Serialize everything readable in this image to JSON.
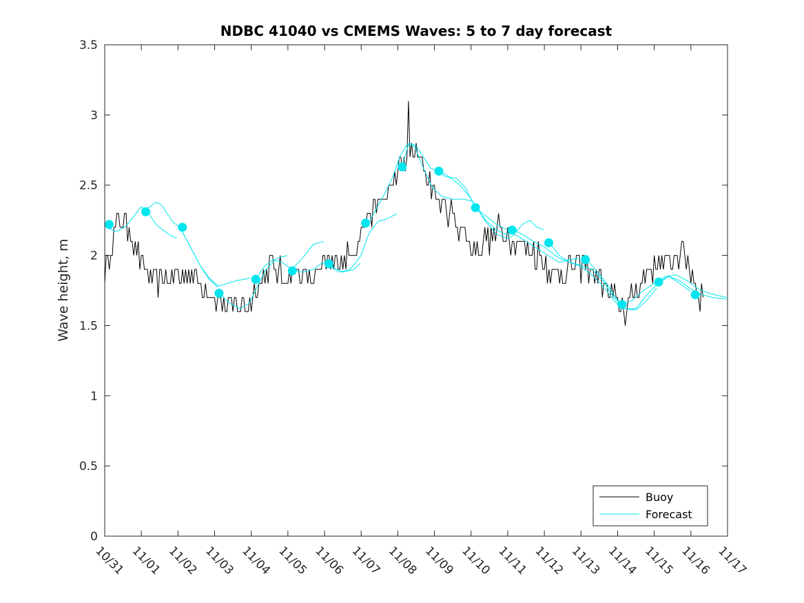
{
  "chart_data": {
    "type": "line",
    "title": "NDBC 41040 vs CMEMS Waves: 5 to 7 day forecast",
    "xlabel": "",
    "ylabel": "Wave height, m",
    "xlim": [
      0,
      17
    ],
    "ylim": [
      0,
      3.5
    ],
    "x_tick_labels": [
      "10/31",
      "11/01",
      "11/02",
      "11/03",
      "11/04",
      "11/05",
      "11/06",
      "11/07",
      "11/08",
      "11/09",
      "11/10",
      "11/11",
      "11/12",
      "11/13",
      "11/14",
      "11/15",
      "11/16",
      "11/17"
    ],
    "y_tick_labels": [
      "0",
      "0.5",
      "1",
      "1.5",
      "2",
      "2.5",
      "3",
      "3.5"
    ],
    "y_ticks": [
      0,
      0.5,
      1,
      1.5,
      2,
      2.5,
      3,
      3.5
    ],
    "legend": {
      "position": "bottom-right",
      "entries": [
        "Buoy",
        "Forecast"
      ]
    },
    "colors": {
      "buoy": "#000000",
      "forecast": "#00e5ee",
      "axes": "#262626"
    },
    "series": [
      {
        "name": "Buoy",
        "style": "noisy-hourly",
        "x": [
          0,
          0.15,
          0.4,
          0.7,
          0.9,
          1.1,
          1.5,
          2.0,
          2.4,
          2.8,
          3.1,
          3.4,
          3.8,
          4.1,
          4.5,
          4.9,
          5.2,
          5.6,
          6.0,
          6.4,
          6.8,
          7.1,
          7.5,
          7.8,
          8.1,
          8.3,
          8.6,
          8.9,
          9.2,
          9.6,
          10.0,
          10.4,
          10.8,
          11.2,
          11.6,
          12.0,
          12.4,
          12.8,
          13.2,
          13.6,
          13.9,
          14.2,
          14.5,
          14.8,
          15.1,
          15.4,
          15.8,
          16.1,
          16.3
        ],
        "values": [
          1.85,
          2.05,
          2.25,
          2.18,
          2.0,
          1.9,
          1.82,
          1.85,
          1.85,
          1.75,
          1.68,
          1.64,
          1.65,
          1.72,
          1.92,
          1.85,
          1.9,
          1.85,
          1.9,
          1.97,
          2.05,
          2.25,
          2.38,
          2.45,
          2.65,
          2.72,
          2.7,
          2.5,
          2.35,
          2.25,
          2.05,
          2.1,
          2.18,
          2.1,
          2.05,
          1.95,
          1.85,
          1.95,
          1.9,
          1.82,
          1.68,
          1.6,
          1.75,
          1.88,
          1.95,
          1.95,
          2.05,
          1.82,
          1.7
        ],
        "noise": 0.09,
        "range": [
          0,
          16.35
        ]
      },
      {
        "name": "Forecast",
        "segments": [
          {
            "x": [
              0.05,
              0.3,
              0.55,
              0.8,
              1.0,
              1.2,
              1.4,
              1.6,
              1.8,
              2.0
            ],
            "values": [
              2.2,
              2.17,
              2.2,
              2.28,
              2.35,
              2.3,
              2.22,
              2.18,
              2.14,
              2.12
            ]
          },
          {
            "x": [
              1.0,
              1.2,
              1.4,
              1.55,
              1.7,
              1.85,
              2.05,
              2.3,
              2.6,
              2.85,
              3.1
            ],
            "values": [
              2.33,
              2.34,
              2.38,
              2.36,
              2.3,
              2.24,
              2.2,
              2.08,
              1.93,
              1.83,
              1.77
            ]
          },
          {
            "x": [
              2.05,
              2.3,
              2.6,
              2.85,
              3.1,
              3.35,
              3.6,
              3.8,
              4.0
            ],
            "values": [
              2.2,
              2.08,
              1.93,
              1.84,
              1.78,
              1.8,
              1.82,
              1.83,
              1.84
            ]
          },
          {
            "x": [
              3.1,
              3.4,
              3.7,
              3.95,
              4.15,
              4.4,
              4.7,
              5.0
            ],
            "values": [
              1.74,
              1.66,
              1.62,
              1.66,
              1.77,
              1.9,
              1.98,
              2.0
            ]
          },
          {
            "x": [
              4.1,
              4.35,
              4.6,
              4.85,
              5.1,
              5.4,
              5.7,
              6.0
            ],
            "values": [
              1.82,
              1.92,
              1.97,
              1.95,
              1.9,
              1.98,
              2.08,
              2.1
            ]
          },
          {
            "x": [
              5.1,
              5.4,
              5.7,
              5.95,
              6.2,
              6.5,
              6.8,
              7.0
            ],
            "values": [
              1.9,
              1.88,
              1.9,
              1.95,
              1.92,
              1.88,
              1.9,
              1.95
            ]
          },
          {
            "x": [
              6.1,
              6.4,
              6.7,
              7.0,
              7.2,
              7.45,
              7.7,
              8.0
            ],
            "values": [
              1.93,
              1.88,
              1.9,
              2.0,
              2.15,
              2.24,
              2.26,
              2.3
            ]
          },
          {
            "x": [
              7.15,
              7.35,
              7.6,
              7.85,
              8.05,
              8.25,
              8.45,
              8.7,
              8.95,
              9.2,
              9.5,
              9.8,
              10.1
            ],
            "values": [
              2.2,
              2.3,
              2.42,
              2.55,
              2.7,
              2.79,
              2.78,
              2.62,
              2.48,
              2.42,
              2.4,
              2.4,
              2.38
            ]
          },
          {
            "x": [
              8.1,
              8.3,
              8.5,
              8.7,
              8.9,
              9.1,
              9.3,
              9.6,
              9.85,
              10.1,
              10.4,
              10.7,
              11.0
            ],
            "values": [
              2.62,
              2.8,
              2.78,
              2.7,
              2.62,
              2.6,
              2.56,
              2.55,
              2.48,
              2.35,
              2.28,
              2.22,
              2.18
            ]
          },
          {
            "x": [
              9.15,
              9.4,
              9.7,
              9.95,
              10.15,
              10.4,
              10.7,
              10.95,
              11.2,
              11.4,
              11.6,
              11.8,
              12.0
            ],
            "values": [
              2.6,
              2.56,
              2.5,
              2.42,
              2.34,
              2.25,
              2.18,
              2.15,
              2.16,
              2.22,
              2.25,
              2.2,
              2.18
            ]
          },
          {
            "x": [
              10.15,
              10.4,
              10.7,
              11.0,
              11.2,
              11.5,
              11.8,
              12.1,
              12.4,
              12.7,
              13.0
            ],
            "values": [
              2.34,
              2.24,
              2.15,
              2.12,
              2.15,
              2.1,
              2.05,
              2.0,
              1.95,
              1.97,
              1.98
            ]
          },
          {
            "x": [
              11.15,
              11.4,
              11.7,
              12.0,
              12.2,
              12.4,
              12.7,
              13.0,
              13.3,
              13.6,
              13.9,
              14.1
            ],
            "values": [
              2.18,
              2.15,
              2.1,
              2.06,
              2.02,
              1.98,
              1.95,
              1.92,
              1.86,
              1.78,
              1.68,
              1.62
            ]
          },
          {
            "x": [
              12.15,
              12.4,
              12.7,
              13.0,
              13.3,
              13.6,
              13.9,
              14.2,
              14.5,
              14.8,
              15.1
            ],
            "values": [
              2.09,
              2.0,
              1.95,
              1.93,
              1.9,
              1.82,
              1.7,
              1.62,
              1.61,
              1.68,
              1.78
            ]
          },
          {
            "x": [
              13.15,
              13.4,
              13.7,
              14.0,
              14.2,
              14.5,
              14.8,
              15.1,
              15.4,
              15.7,
              16.0
            ],
            "values": [
              1.97,
              1.9,
              1.8,
              1.68,
              1.62,
              1.62,
              1.72,
              1.8,
              1.85,
              1.8,
              1.74
            ]
          },
          {
            "x": [
              14.15,
              14.4,
              14.7,
              15.0,
              15.3,
              15.6,
              15.9,
              16.2,
              16.5,
              16.8,
              17.0
            ],
            "values": [
              1.65,
              1.68,
              1.75,
              1.8,
              1.85,
              1.86,
              1.82,
              1.76,
              1.73,
              1.71,
              1.7
            ]
          },
          {
            "x": [
              15.1,
              15.4,
              15.7,
              16.0,
              16.3,
              16.6,
              16.9,
              17.0
            ],
            "values": [
              1.81,
              1.85,
              1.82,
              1.76,
              1.72,
              1.7,
              1.69,
              1.69
            ]
          }
        ],
        "markers": {
          "x": [
            0.12,
            1.12,
            2.12,
            3.12,
            4.12,
            5.12,
            6.12,
            7.12,
            8.12,
            9.12,
            10.12,
            11.12,
            12.12,
            13.12,
            14.12,
            15.12,
            16.12
          ],
          "values": [
            2.22,
            2.31,
            2.2,
            1.73,
            1.83,
            1.89,
            1.94,
            2.23,
            2.63,
            2.6,
            2.34,
            2.18,
            2.09,
            1.97,
            1.65,
            1.81,
            1.72
          ]
        }
      }
    ]
  }
}
